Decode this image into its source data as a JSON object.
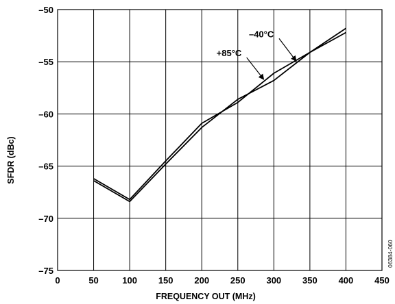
{
  "chart_data": {
    "type": "line",
    "xlabel": "FREQUENCY OUT (MHz)",
    "ylabel": "SFDR (dBc)",
    "xlim": [
      0,
      450
    ],
    "ylim": [
      -75,
      -50
    ],
    "x_ticks": [
      0,
      50,
      100,
      150,
      200,
      250,
      300,
      350,
      400,
      450
    ],
    "y_ticks": [
      -50,
      -55,
      -60,
      -65,
      -70,
      -75
    ],
    "y_tick_labels": [
      "–50",
      "–55",
      "–60",
      "–65",
      "–70",
      "–75"
    ],
    "grid": true,
    "series": [
      {
        "name": "+85°C",
        "x": [
          50,
          100,
          150,
          200,
          250,
          300,
          350,
          400
        ],
        "y": [
          -66.2,
          -68.2,
          -64.5,
          -60.9,
          -58.9,
          -56.1,
          -54.1,
          -52.2
        ]
      },
      {
        "name": "–40°C",
        "x": [
          50,
          100,
          150,
          200,
          250,
          300,
          350,
          400
        ],
        "y": [
          -66.4,
          -68.4,
          -64.8,
          -61.3,
          -58.6,
          -56.8,
          -54.1,
          -51.8
        ]
      }
    ],
    "annotations": [
      {
        "text": "–40°C",
        "series": 1,
        "arrow_to_x": 332
      },
      {
        "text": "+85°C",
        "series": 0,
        "arrow_to_x": 287
      }
    ],
    "figure_id": "06384-060"
  }
}
